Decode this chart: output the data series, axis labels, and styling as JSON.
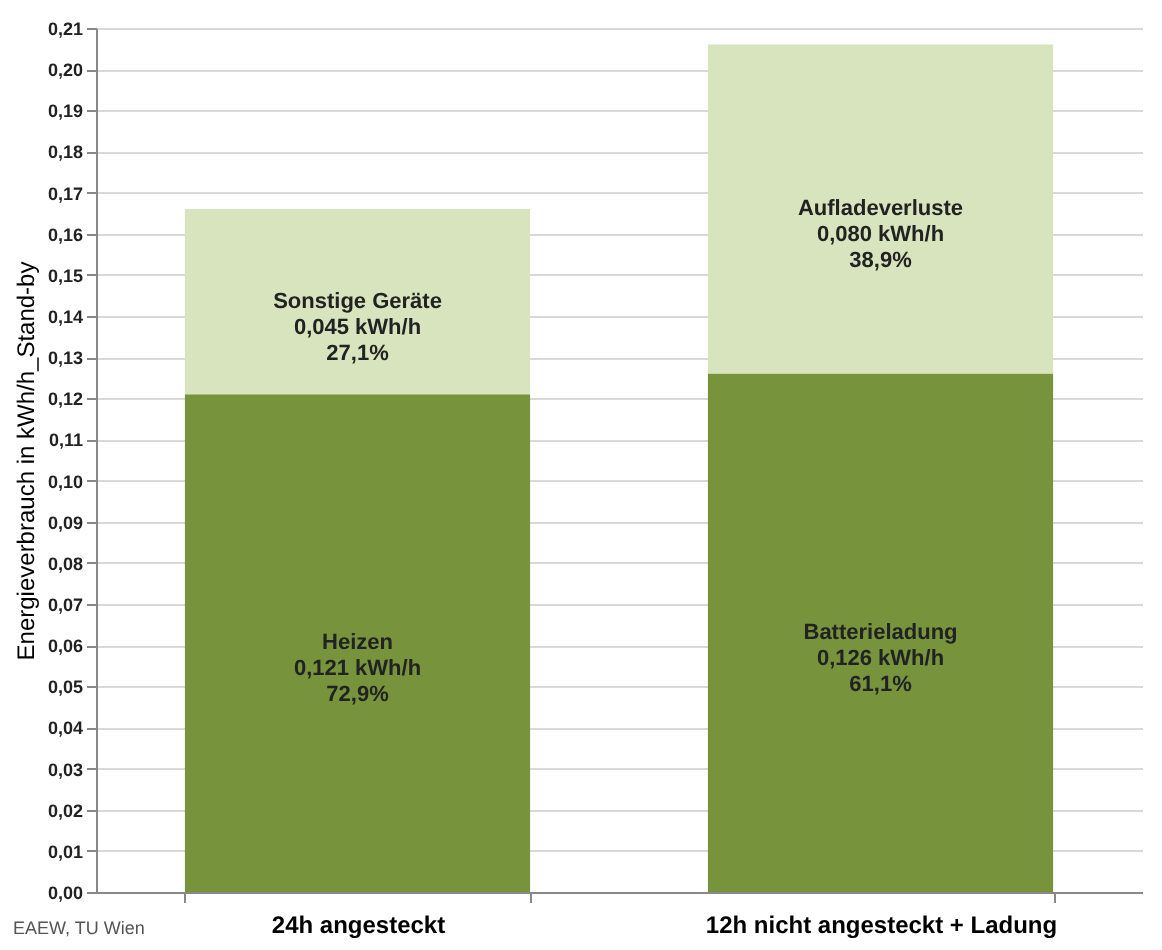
{
  "chart_data": {
    "type": "bar",
    "stacked": true,
    "ylabel": "Energieverbrauch in kWh/h_Stand-by",
    "categories": [
      "24h angesteckt",
      "12h nicht angesteckt + Ladung"
    ],
    "series": [
      {
        "color": "#77933c",
        "values": [
          0.121,
          0.126
        ],
        "value_labels": [
          "Heizen\n0,121 kWh/h\n72,9%",
          "Batterieladung\n0,126 kWh/h\n61,1%"
        ]
      },
      {
        "color": "#d7e4bd",
        "values": [
          0.045,
          0.08
        ],
        "value_labels": [
          "Sonstige Geräte\n0,045 kWh/h\n27,1%",
          "Aufladeverluste\n0,080 kWh/h\n38,9%"
        ]
      }
    ],
    "ylim": [
      0,
      0.21
    ],
    "yticks": [
      {
        "value": 0,
        "label": "0,00"
      },
      {
        "value": 0.01,
        "label": "0,01"
      },
      {
        "value": 0.02,
        "label": "0,02"
      },
      {
        "value": 0.03,
        "label": "0,03"
      },
      {
        "value": 0.04,
        "label": "0,04"
      },
      {
        "value": 0.05,
        "label": "0,05"
      },
      {
        "value": 0.06,
        "label": "0,06"
      },
      {
        "value": 0.07,
        "label": "0,07"
      },
      {
        "value": 0.08,
        "label": "0,08"
      },
      {
        "value": 0.09,
        "label": "0,09"
      },
      {
        "value": 0.1,
        "label": "0,10"
      },
      {
        "value": 0.11,
        "label": "0,11"
      },
      {
        "value": 0.12,
        "label": "0,12"
      },
      {
        "value": 0.13,
        "label": "0,13"
      },
      {
        "value": 0.14,
        "label": "0,14"
      },
      {
        "value": 0.15,
        "label": "0,15"
      },
      {
        "value": 0.16,
        "label": "0,16"
      },
      {
        "value": 0.17,
        "label": "0,17"
      },
      {
        "value": 0.18,
        "label": "0,18"
      },
      {
        "value": 0.19,
        "label": "0,19"
      },
      {
        "value": 0.2,
        "label": "0,20"
      },
      {
        "value": 0.21,
        "label": "0,21"
      }
    ],
    "grid": "y",
    "annotations": [
      "EAEW, TU Wien"
    ]
  }
}
